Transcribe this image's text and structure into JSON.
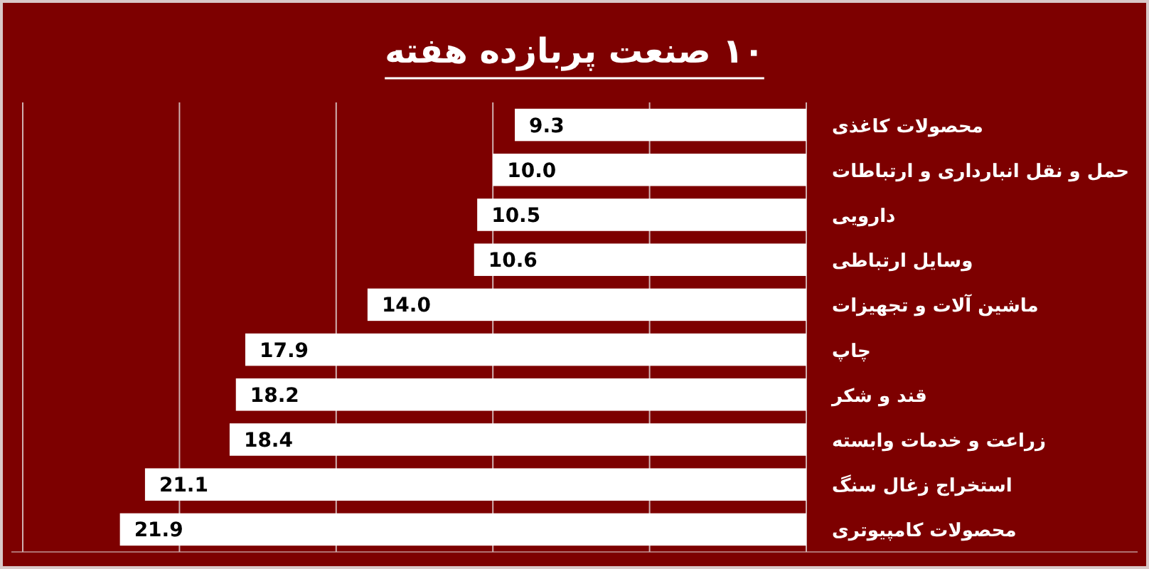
{
  "chart_data": {
    "type": "bar",
    "orientation": "horizontal",
    "title": "۱۰ صنعت پربازده هفته",
    "categories": [
      "محصولات کاغذی",
      "حمل و نقل انبارداری و ارتباطات",
      "دارویی",
      "وسایل ارتباطی",
      "ماشین آلات و تجهیزات",
      "چاپ",
      "قند و شکر",
      "زراعت و خدمات وابسته",
      "استخراج زغال سنگ",
      "محصولات کامپیوتری"
    ],
    "values": [
      9.3,
      10.0,
      10.5,
      10.6,
      14.0,
      17.9,
      18.2,
      18.4,
      21.1,
      21.9
    ],
    "value_labels": [
      "9.3",
      "10.0",
      "10.5",
      "10.6",
      "14.0",
      "17.9",
      "18.2",
      "18.4",
      "21.1",
      "21.9"
    ],
    "color": "#ffffff",
    "xlim": [
      25,
      0
    ],
    "xticks": [
      {
        "value": 0,
        "label": null
      },
      {
        "value": 5,
        "label": null
      },
      {
        "value": 10,
        "label": null
      },
      {
        "value": 15,
        "label": null
      },
      {
        "value": 20,
        "label": null
      },
      {
        "value": 25,
        "label": null
      }
    ],
    "grid": "x"
  }
}
